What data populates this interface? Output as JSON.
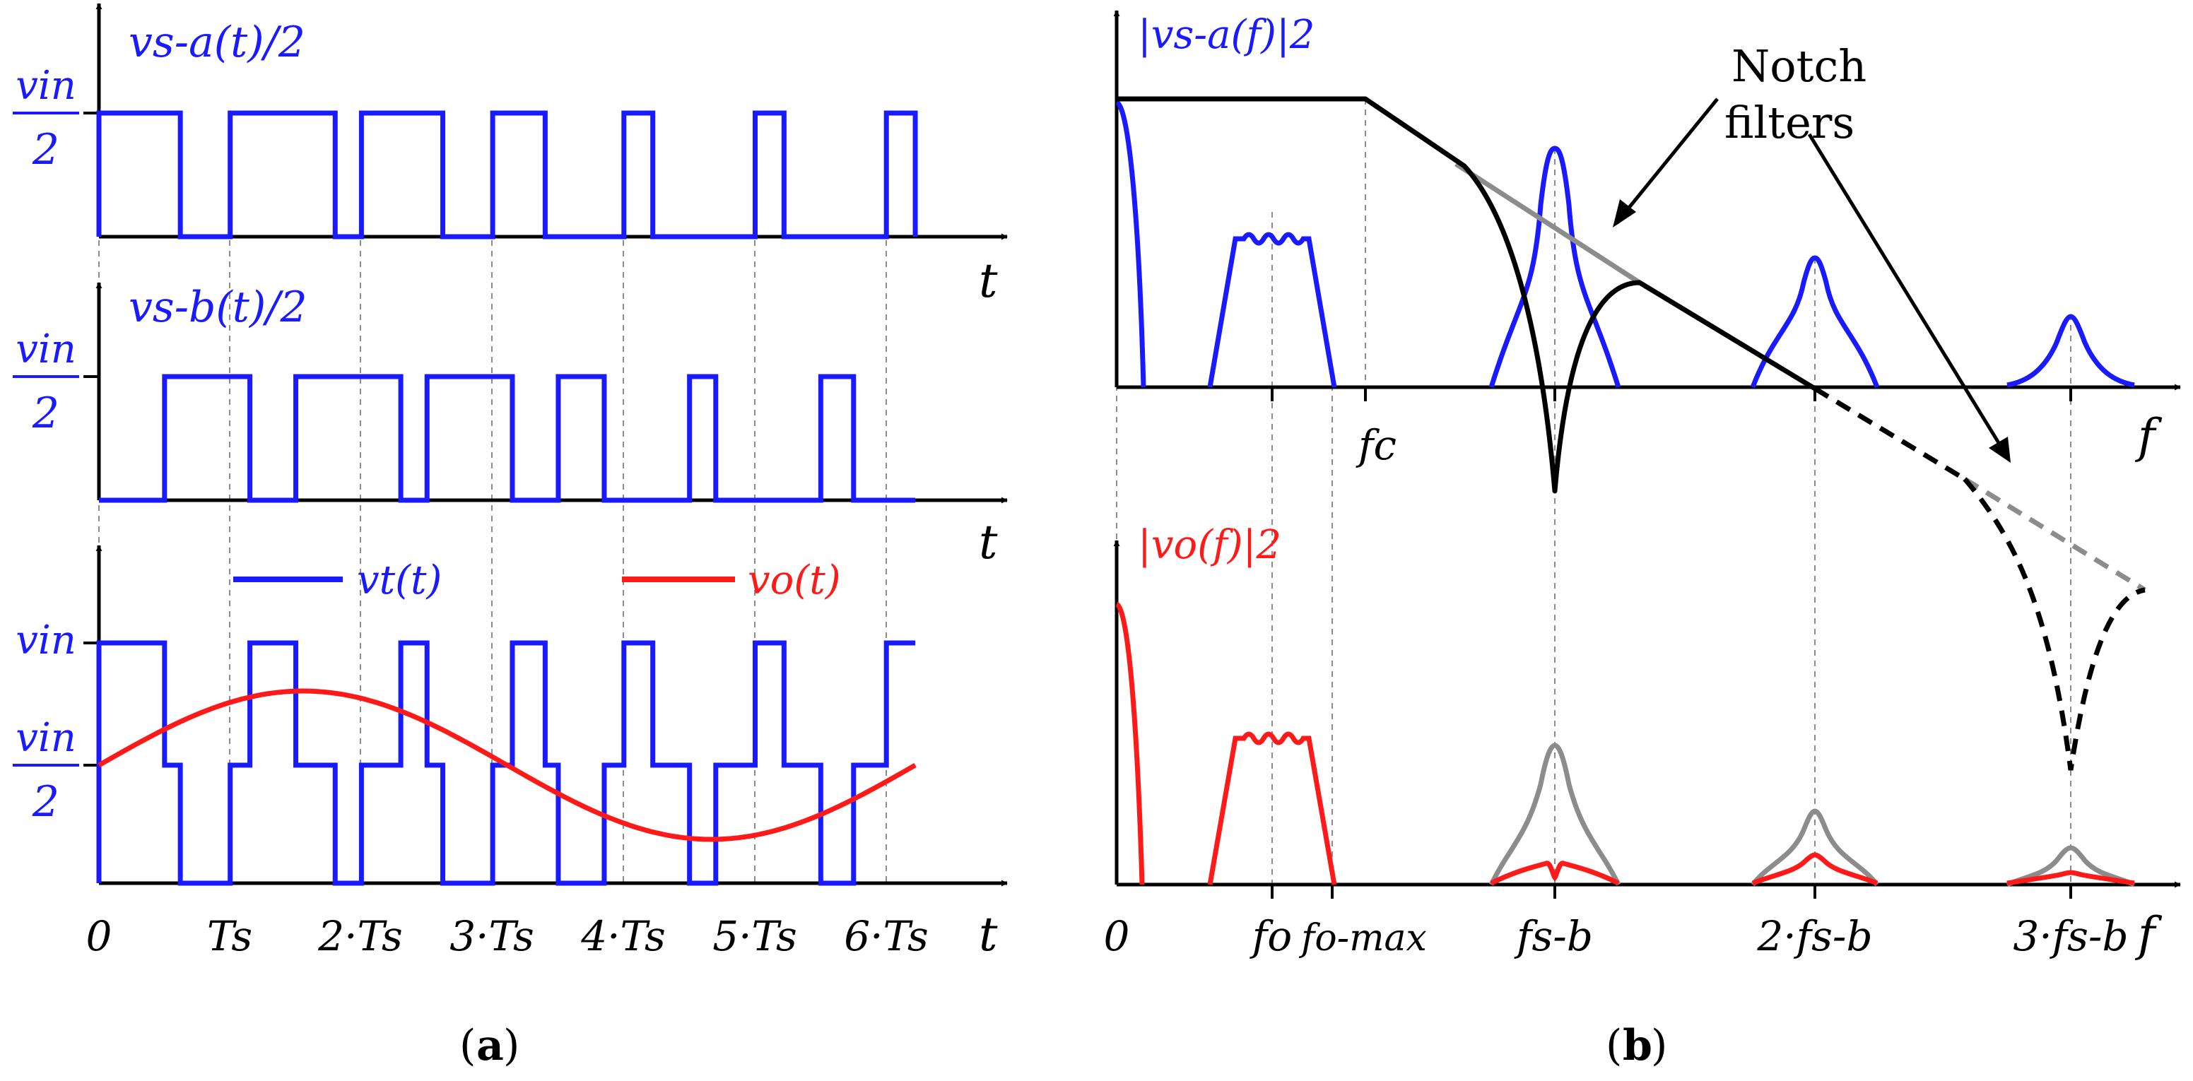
{
  "colors": {
    "blue": "#1a1aff",
    "red": "#ff1a1a",
    "black": "#000000",
    "gray": "#8c8c8c",
    "grid": "#8c8c8c"
  },
  "panel_a": {
    "caption_open": "(",
    "caption_letter": "a",
    "caption_close": ")",
    "plot1": {
      "y_label": "vs-a(t)/2",
      "y_tick_num": "vin",
      "y_tick_den": "2",
      "x_axis": "t"
    },
    "plot2": {
      "y_label": "vs-b(t)/2",
      "y_tick_num": "vin",
      "y_tick_den": "2",
      "x_axis": "t"
    },
    "plot3": {
      "y_tick_top": "vin",
      "y_tick_mid_num": "vin",
      "y_tick_mid_den": "2",
      "x_axis": "t",
      "legend_vt": "vt(t)",
      "legend_vo": "vo(t)",
      "x_ticks": [
        "0",
        "Ts",
        "2·Ts",
        "3·Ts",
        "4·Ts",
        "5·Ts",
        "6·Ts"
      ]
    },
    "switching_periods": 6,
    "signals": {
      "vs_a_high_intervals_Ts": [
        [
          0.0,
          0.62
        ],
        [
          1.0,
          1.8
        ],
        [
          2.0,
          2.62
        ],
        [
          3.0,
          3.4
        ],
        [
          4.0,
          4.22
        ],
        [
          5.0,
          5.22
        ],
        [
          6.0,
          6.22
        ]
      ],
      "vs_b_high_intervals_Ts": [
        [
          0.5,
          1.15
        ],
        [
          1.5,
          2.3
        ],
        [
          2.5,
          3.15
        ],
        [
          3.5,
          3.85
        ],
        [
          4.5,
          4.7
        ],
        [
          5.5,
          5.75
        ]
      ],
      "vt_levels": [
        "0",
        "vin/2",
        "vin"
      ],
      "vo_waveform": "sinusoid centered at vin/2, one full period over 0 to 6.2·Ts, amplitude ≈ 0.33·vin"
    }
  },
  "panel_b": {
    "caption_open": "(",
    "caption_letter": "b",
    "caption_close": ")",
    "plot1": {
      "y_label": "|vs-a(f)|2",
      "x_axis": "f",
      "fc_label": "fc"
    },
    "plot2": {
      "y_label": "|vo(f)|2",
      "x_axis": "f"
    },
    "annotation_line1": "Notch",
    "annotation_line2": "filters",
    "x_ticks": [
      "0",
      "fo",
      "fo-max",
      "fs-b",
      "2·fs-b",
      "3·fs-b"
    ]
  }
}
